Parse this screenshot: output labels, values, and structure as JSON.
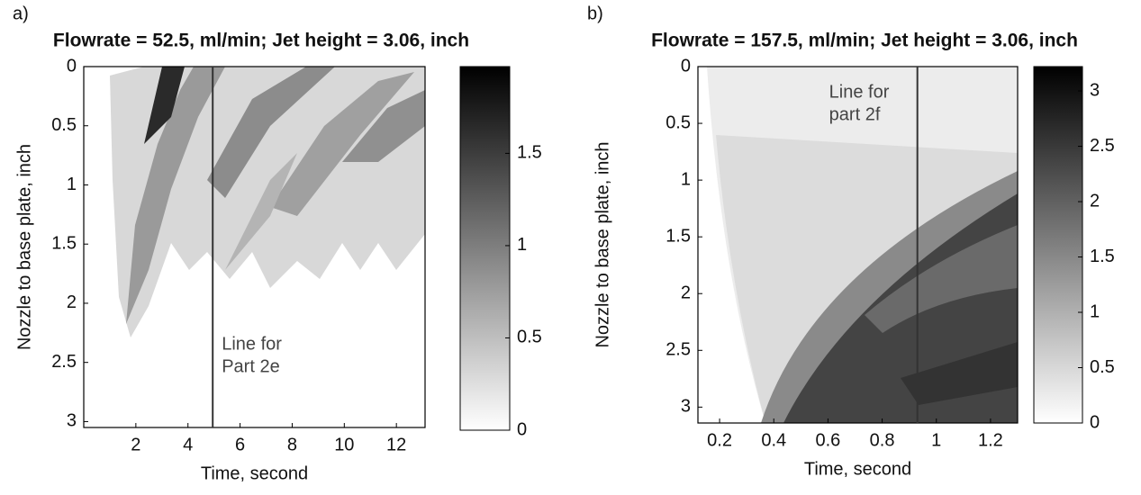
{
  "chart_data": [
    {
      "type": "heatmap",
      "panel_label": "a)",
      "title": "Flowrate = 52.5, ml/min; Jet height = 3.06, inch",
      "xlabel": "Time, second",
      "ylabel": "Nozzle to base plate, inch",
      "xlim": [
        0,
        13.1
      ],
      "xticks": [
        2,
        4,
        6,
        8,
        10,
        12
      ],
      "ylim": [
        0,
        3.05
      ],
      "yticks": [
        0,
        0.5,
        1,
        1.5,
        2,
        2.5,
        3
      ],
      "y_inverted": true,
      "colorbar": {
        "clim": [
          0,
          1.97
        ],
        "ticks": [
          0,
          0.5,
          1,
          1.5
        ]
      },
      "annotation": {
        "text": [
          "Line for",
          "Part 2e"
        ],
        "x": 4.95
      }
    },
    {
      "type": "heatmap",
      "panel_label": "b)",
      "title": "Flowrate = 157.5, ml/min; Jet height = 3.06, inch",
      "xlabel": "Time, second",
      "ylabel": "Nozzle to base plate, inch",
      "xlim": [
        0.12,
        1.3
      ],
      "xticks": [
        0.2,
        0.4,
        0.6,
        0.8,
        1,
        1.2
      ],
      "ylim": [
        0,
        3.14
      ],
      "yticks": [
        0,
        0.5,
        1,
        1.5,
        2,
        2.5,
        3
      ],
      "y_inverted": true,
      "colorbar": {
        "clim": [
          0,
          3.22
        ],
        "ticks": [
          0,
          0.5,
          1,
          1.5,
          2,
          2.5,
          3
        ]
      },
      "annotation": {
        "text": [
          "Line for",
          "part 2f"
        ],
        "x": 0.93
      }
    }
  ]
}
